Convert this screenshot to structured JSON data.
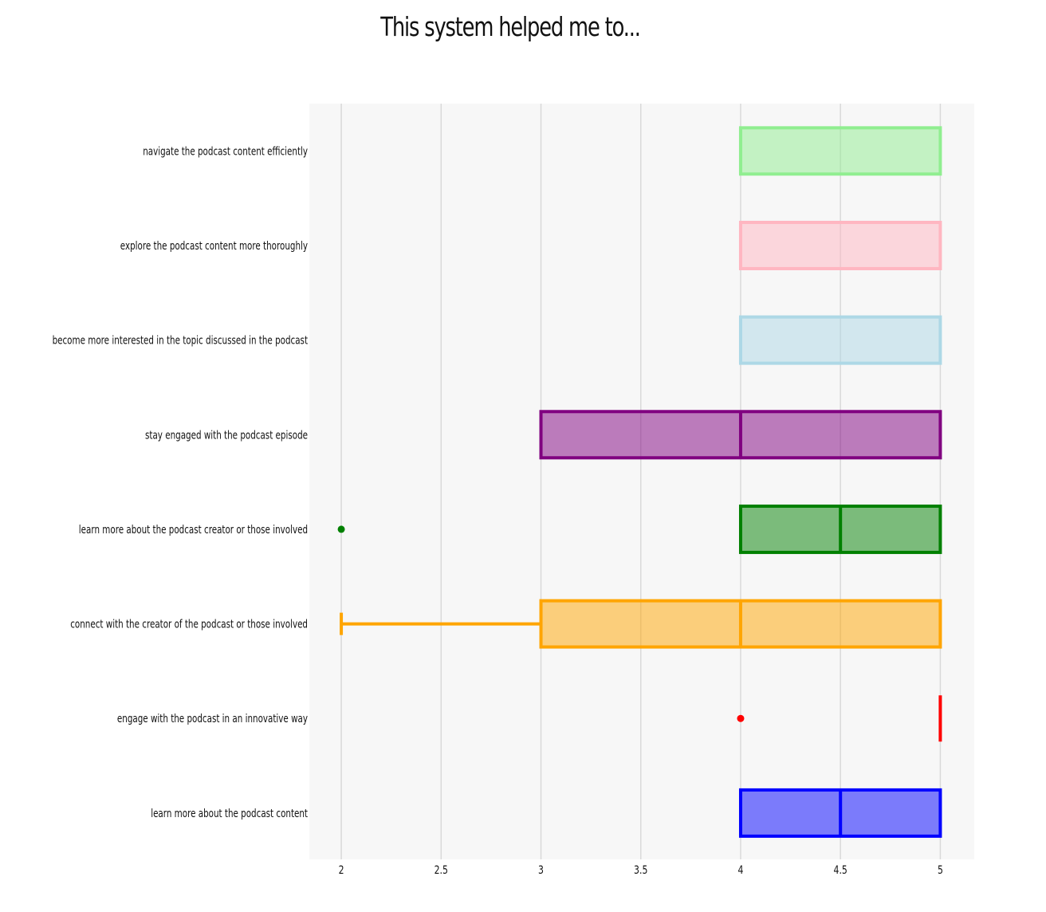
{
  "chart_data": {
    "type": "boxplot",
    "title": "This system helped me to...",
    "xlabel": "",
    "ylabel": "",
    "xlim": [
      1.84,
      5.17
    ],
    "xticks": [
      "2",
      "2.5",
      "3",
      "3.5",
      "4",
      "4.5",
      "5"
    ],
    "xtick_values": [
      2,
      2.5,
      3,
      3.5,
      4,
      4.5,
      5
    ],
    "grid": "vertical",
    "categories": [
      "navigate the podcast content efficiently",
      "explore the podcast content more thoroughly",
      "become more interested in the topic discussed in the podcast",
      "stay engaged with the podcast episode",
      "learn more about the podcast creator or those involved",
      "connect with the creator of the podcast or those involved",
      "engage with the podcast in an innovative way",
      "learn more about the podcast content"
    ],
    "series": [
      {
        "category": "navigate the podcast content efficiently",
        "min": 4,
        "q1": 4,
        "median": 4,
        "q3": 5,
        "max": 5,
        "outliers": [],
        "color": "#90ee90"
      },
      {
        "category": "explore the podcast content more thoroughly",
        "min": 4,
        "q1": 4,
        "median": 4,
        "q3": 5,
        "max": 5,
        "outliers": [],
        "color": "#ffb6c1"
      },
      {
        "category": "become more interested in the topic discussed in the podcast",
        "min": 4,
        "q1": 4,
        "median": 4,
        "q3": 5,
        "max": 5,
        "outliers": [],
        "color": "#add8e6"
      },
      {
        "category": "stay engaged with the podcast episode",
        "min": 3,
        "q1": 3,
        "median": 4,
        "q3": 5,
        "max": 5,
        "outliers": [],
        "color": "#800080"
      },
      {
        "category": "learn more about the podcast creator or those involved",
        "min": 4,
        "q1": 4,
        "median": 4.5,
        "q3": 5,
        "max": 5,
        "outliers": [
          2
        ],
        "color": "#008000"
      },
      {
        "category": "connect with the creator of the podcast or those involved",
        "min": 2,
        "q1": 3,
        "median": 4,
        "q3": 5,
        "max": 5,
        "outliers": [],
        "color": "#ffa500"
      },
      {
        "category": "engage with the podcast in an innovative way",
        "min": 5,
        "q1": 5,
        "median": 5,
        "q3": 5,
        "max": 5,
        "outliers": [
          4
        ],
        "color": "#ff0000"
      },
      {
        "category": "learn more about the podcast content",
        "min": 4,
        "q1": 4,
        "median": 4.5,
        "q3": 5,
        "max": 5,
        "outliers": [],
        "color": "#0000ff"
      }
    ],
    "colors": {
      "plot_background": "#f7f7f7",
      "grid": "#d9d9d9",
      "text": "#111111"
    }
  }
}
